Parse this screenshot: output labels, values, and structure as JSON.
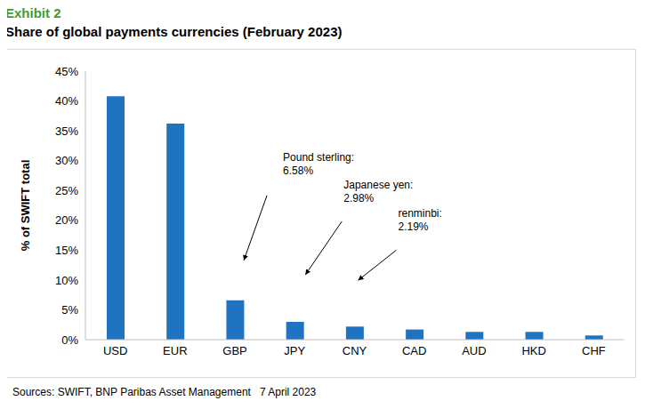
{
  "chart_data": {
    "type": "bar",
    "exhibit": "Exhibit 2",
    "title": "Share of global payments currencies (February 2023)",
    "y_label": "% of SWIFT total",
    "source": "Sources: SWIFT, BNP Paribas Asset Management   7 April 2023",
    "categories": [
      "USD",
      "EUR",
      "GBP",
      "JPY",
      "CNY",
      "CAD",
      "AUD",
      "HKD",
      "CHF"
    ],
    "values": [
      40.8,
      36.2,
      6.58,
      2.98,
      2.19,
      1.7,
      1.3,
      1.3,
      0.7
    ],
    "color": "#1f73c1",
    "ylim": [
      0,
      45
    ],
    "yticks": [
      {
        "value": 0,
        "label": "0%"
      },
      {
        "value": 5,
        "label": "5%"
      },
      {
        "value": 10,
        "label": "10%"
      },
      {
        "value": 15,
        "label": "15%"
      },
      {
        "value": 20,
        "label": "20%"
      },
      {
        "value": 25,
        "label": "25%"
      },
      {
        "value": 30,
        "label": "30%"
      },
      {
        "value": 35,
        "label": "35%"
      },
      {
        "value": 40,
        "label": "40%"
      },
      {
        "value": 45,
        "label": "45%"
      }
    ],
    "grid": false,
    "annotations": [
      {
        "category": "GBP",
        "text": [
          "Pound sterling:",
          "6.58%"
        ]
      },
      {
        "category": "JPY",
        "text": [
          "Japanese yen:",
          "2.98%"
        ]
      },
      {
        "category": "CNY",
        "text": [
          "renminbi:",
          "2.19%"
        ]
      }
    ]
  }
}
